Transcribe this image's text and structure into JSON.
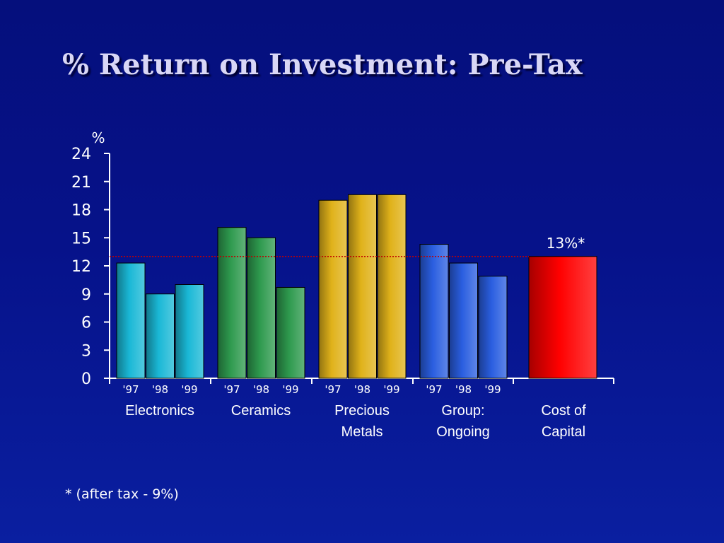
{
  "slide": {
    "title": "% Return on Investment: Pre-Tax",
    "footnote": "* (after tax - 9%)"
  },
  "colors": {
    "electronics": "#1ab8d6",
    "ceramics": "#2e9a4e",
    "precious_metals": "#e0b21a",
    "group_ongoing": "#2a5ee0",
    "cost_of_capital": "#ff0000",
    "reference_line": "#c00000"
  },
  "chart_data": {
    "type": "bar",
    "ylabel": "%",
    "ylim": [
      0,
      24
    ],
    "yticks": [
      0,
      3,
      6,
      9,
      12,
      15,
      18,
      21,
      24
    ],
    "year_labels": [
      "'97",
      "'98",
      "'99"
    ],
    "groups": [
      {
        "name": "Electronics",
        "label_lines": [
          "Electronics"
        ],
        "color_key": "electronics",
        "values": [
          12.3,
          9.0,
          10.0
        ]
      },
      {
        "name": "Ceramics",
        "label_lines": [
          "Ceramics"
        ],
        "color_key": "ceramics",
        "values": [
          16.1,
          15.0,
          9.7
        ]
      },
      {
        "name": "Precious Metals",
        "label_lines": [
          "Precious",
          "Metals"
        ],
        "color_key": "precious_metals",
        "values": [
          19.0,
          19.6,
          19.6
        ]
      },
      {
        "name": "Group: Ongoing",
        "label_lines": [
          "Group:",
          "Ongoing"
        ],
        "color_key": "group_ongoing",
        "values": [
          14.3,
          12.3,
          10.9
        ]
      },
      {
        "name": "Cost of Capital",
        "label_lines": [
          "Cost of",
          "Capital"
        ],
        "color_key": "cost_of_capital",
        "values": [
          13.0
        ]
      }
    ],
    "reference_line": {
      "value": 13.0,
      "label": "13%*"
    }
  }
}
